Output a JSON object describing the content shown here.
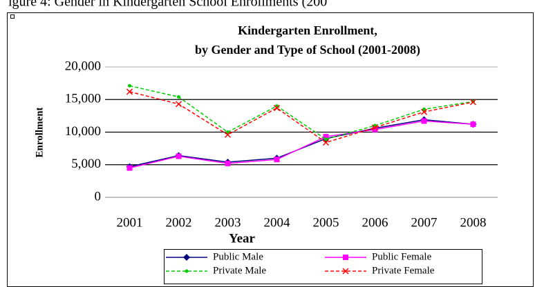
{
  "caption": "igure 4: Gender in Kindergarten School Enrollments (200",
  "chart_data": {
    "type": "line",
    "title": [
      "Kindergarten  Enrollment,",
      "by Gender  and Type of School (2001-2008)"
    ],
    "x_label": "Year",
    "y_label": "Enrollment",
    "categories": [
      "2001",
      "2002",
      "2003",
      "2004",
      "2005",
      "2006",
      "2007",
      "2008"
    ],
    "series": [
      {
        "name": "Public Male",
        "color": "#000080",
        "marker": "diamond",
        "dashed": false,
        "values": [
          4700,
          6400,
          5400,
          6000,
          9000,
          10600,
          11900,
          11200
        ]
      },
      {
        "name": "Public Female",
        "color": "#ff00ff",
        "marker": "square",
        "dashed": false,
        "values": [
          4500,
          6300,
          5200,
          5800,
          9300,
          10400,
          11700,
          11200
        ]
      },
      {
        "name": "Private Male",
        "color": "#00cc00",
        "marker": "dot",
        "dashed": true,
        "values": [
          17100,
          15400,
          10000,
          14000,
          8900,
          11000,
          13500,
          14700
        ]
      },
      {
        "name": "Private Female",
        "color": "#ff0000",
        "marker": "x",
        "dashed": true,
        "values": [
          16200,
          14300,
          9600,
          13700,
          8400,
          10700,
          13100,
          14600
        ]
      }
    ],
    "ylim": [
      0,
      20000
    ],
    "yticks": [
      0,
      {
        "value": 5000,
        "label": "5,000"
      },
      {
        "value": 10000,
        "label": "10,000"
      },
      {
        "value": 15000,
        "label": "15,000"
      },
      {
        "value": 20000,
        "label": "20,000"
      }
    ],
    "grid": true,
    "legend": "bottom"
  }
}
